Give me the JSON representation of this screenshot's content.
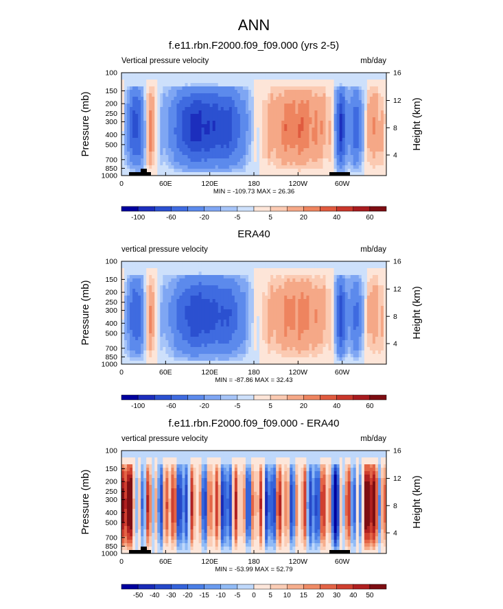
{
  "figure": {
    "title": "ANN"
  },
  "colors": {
    "abs_scale": [
      "#00009e",
      "#1c2ebd",
      "#2b50d0",
      "#3f6be0",
      "#5c8aec",
      "#7fa6f3",
      "#a6c4f8",
      "#cde0fb",
      "#fde5d8",
      "#fbcab2",
      "#f5a887",
      "#ee845f",
      "#e05b3f",
      "#c9372b",
      "#a81b1f",
      "#7d0d12"
    ],
    "diff_scale": [
      "#00009e",
      "#182bb7",
      "#2548c9",
      "#3463da",
      "#4a7ee6",
      "#6a9bef",
      "#91bbf6",
      "#bfd8fb",
      "#fde6da",
      "#fbcdb6",
      "#f6ae8d",
      "#ef8b66",
      "#e36446",
      "#cf3f2f",
      "#b02020",
      "#7d0d12"
    ]
  },
  "chart_data": [
    {
      "type": "heatmap",
      "title": "f.e11.rbn.F2000.f09_f09.000 (yrs 2-5)",
      "left_label": "Vertical pressure velocity",
      "units": "mb/day",
      "ylabel": "Pressure (mb)",
      "ylabel_right": "Height (km)",
      "pressure_ticks": [
        "100",
        "150",
        "200",
        "250",
        "300",
        "400",
        "500",
        "700",
        "850",
        "1000"
      ],
      "height_ticks": [
        "4",
        "8",
        "12",
        "16"
      ],
      "lon_ticks": [
        "0",
        "60E",
        "120E",
        "180",
        "120W",
        "60W"
      ],
      "stats": "MIN = -109.73  MAX =  26.36",
      "colorbar_labels": [
        "-100",
        "-60",
        "-20",
        "-5",
        "5",
        "20",
        "40",
        "60"
      ],
      "scale": "abs",
      "vmin": -109.73,
      "vmax": 26.36,
      "topography": true
    },
    {
      "type": "heatmap",
      "title": "ERA40",
      "left_label": "vertical pressure velocity",
      "units": "mb/day",
      "ylabel": "Pressure (mb)",
      "ylabel_right": "Height (km)",
      "pressure_ticks": [
        "100",
        "150",
        "200",
        "250",
        "300",
        "400",
        "500",
        "700",
        "850",
        "1000"
      ],
      "height_ticks": [
        "4",
        "8",
        "12",
        "16"
      ],
      "lon_ticks": [
        "0",
        "60E",
        "120E",
        "180",
        "120W",
        "60W"
      ],
      "stats": "MIN = -87.86  MAX =  32.43",
      "colorbar_labels": [
        "-100",
        "-60",
        "-20",
        "-5",
        "5",
        "20",
        "40",
        "60"
      ],
      "scale": "abs",
      "vmin": -87.86,
      "vmax": 32.43,
      "topography": false
    },
    {
      "type": "heatmap",
      "title": "f.e11.rbn.F2000.f09_f09.000 - ERA40",
      "left_label": "vertical pressure velocity",
      "units": "mb/day",
      "ylabel": "Pressure (mb)",
      "ylabel_right": "Height (km)",
      "pressure_ticks": [
        "100",
        "150",
        "200",
        "250",
        "300",
        "400",
        "500",
        "700",
        "850",
        "1000"
      ],
      "height_ticks": [
        "4",
        "8",
        "12",
        "16"
      ],
      "lon_ticks": [
        "0",
        "60E",
        "120E",
        "180",
        "120W",
        "60W"
      ],
      "stats": "MIN = -53.99  MAX =  52.79",
      "colorbar_labels": [
        "-50",
        "-40",
        "-30",
        "-20",
        "-15",
        "-10",
        "-5",
        "0",
        "5",
        "10",
        "15",
        "20",
        "30",
        "40",
        "50"
      ],
      "scale": "diff",
      "vmin": -53.99,
      "vmax": 52.79,
      "topography": true
    }
  ]
}
